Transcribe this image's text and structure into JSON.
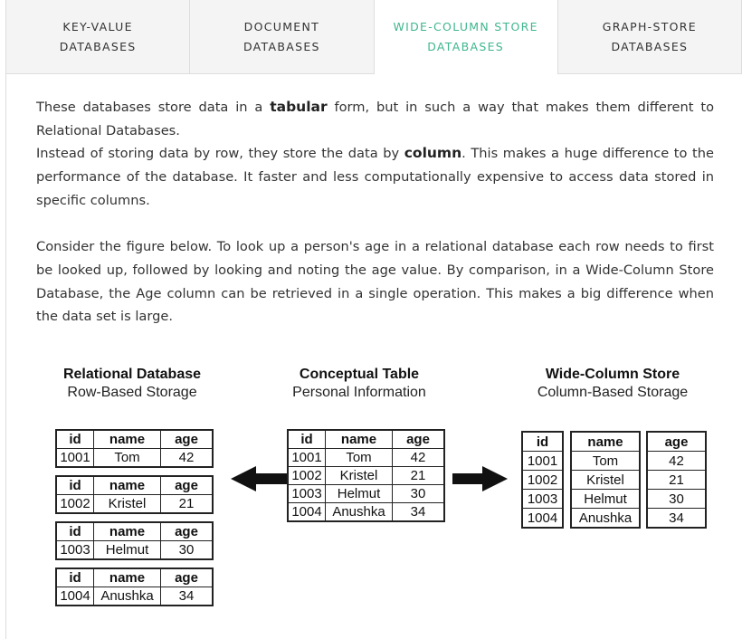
{
  "tabs": [
    {
      "line1": "KEY-VALUE",
      "line2": "DATABASES",
      "active": false
    },
    {
      "line1": "DOCUMENT",
      "line2": "DATABASES",
      "active": false
    },
    {
      "line1": "WIDE-COLUMN STORE",
      "line2": "DATABASES",
      "active": true
    },
    {
      "line1": "GRAPH-STORE",
      "line2": "DATABASES",
      "active": false
    }
  ],
  "content": {
    "p1_pre": "These databases store data in a ",
    "p1_bold": "tabular",
    "p1_post": " form, but in such a way that makes them different to Relational Databases.",
    "p2_pre": "Instead of storing data by row, they store the data by ",
    "p2_bold": "column",
    "p2_post": ". This makes a huge difference to the performance of the database. It faster and less computationally expensive to access data stored in specific columns.",
    "p3": "Consider the figure below. To look up a person's age in a relational database each row needs to first be looked up, followed by looking and noting the age value. By comparison, in a Wide-Column Store Database, the Age column can be retrieved in a single operation. This makes a big difference when the data set is large."
  },
  "figure": {
    "relational": {
      "title": "Relational Database",
      "subtitle": "Row-Based Storage"
    },
    "conceptual": {
      "title": "Conceptual Table",
      "subtitle": "Personal Information"
    },
    "widecolumn": {
      "title": "Wide-Column Store",
      "subtitle": "Column-Based Storage"
    },
    "headers": {
      "id": "id",
      "name": "name",
      "age": "age"
    },
    "rows": [
      {
        "id": "1001",
        "name": "Tom",
        "age": "42"
      },
      {
        "id": "1002",
        "name": "Kristel",
        "age": "21"
      },
      {
        "id": "1003",
        "name": "Helmut",
        "age": "30"
      },
      {
        "id": "1004",
        "name": "Anushka",
        "age": "34"
      }
    ]
  }
}
